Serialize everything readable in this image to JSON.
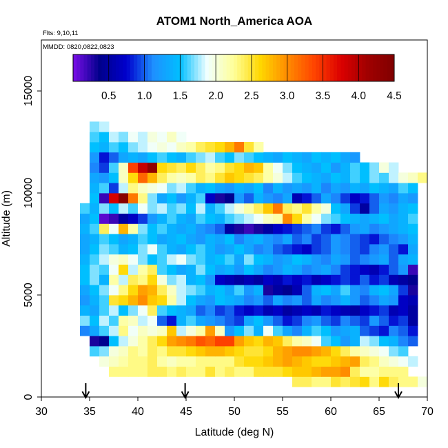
{
  "chart_data": {
    "type": "heatmap",
    "title": "ATOM1 North_America AOA",
    "annotations": [
      "Flts: 9,10,11",
      "MMDD: 0820,0822,0823"
    ],
    "xlabel": "Latitude (deg N)",
    "ylabel": "Altitude (m)",
    "xlim": [
      30,
      70
    ],
    "ylim": [
      0,
      17500
    ],
    "x_ticks": [
      "30",
      "35",
      "40",
      "45",
      "50",
      "55",
      "60",
      "65",
      "70"
    ],
    "y_ticks": [
      "0",
      "5000",
      "10000",
      "15000"
    ],
    "colorbar": {
      "range": [
        0,
        4.5
      ],
      "ticks": [
        "0.5",
        "1.0",
        "1.5",
        "2.0",
        "2.5",
        "3.0",
        "3.5",
        "4.0",
        "4.5"
      ],
      "colors": [
        "#7B0FE8",
        "#00008B",
        "#0000CD",
        "#1E90FF",
        "#00BFFF",
        "#F0FFFF",
        "#FFFF99",
        "#FFD700",
        "#FF8C00",
        "#FF4500",
        "#DC0000",
        "#A00000",
        "#800000"
      ]
    },
    "arrow_latitudes": [
      34.6,
      44.9,
      67.0
    ],
    "grid": false,
    "cell_size": {
      "dlat": 1.0,
      "dalt": 500
    },
    "rows": [
      {
        "alt": 500,
        "lat_start": 56,
        "values": [
          2.4,
          2.4,
          2.3,
          2.3,
          2.5,
          2.4,
          2.5,
          2.6,
          2.3,
          2.6,
          2.4,
          2.3,
          2.3,
          2.0
        ]
      },
      {
        "alt": 1000,
        "lat_start": 37,
        "values": [
          2.3,
          2.3,
          2.3,
          2.3,
          2.4,
          2.4,
          2.3,
          2.4,
          2.3,
          2.3,
          2.5,
          2.3,
          2.4,
          2.3,
          2.3,
          2.5,
          2.5,
          2.5,
          2.6,
          2.7,
          2.7,
          2.8,
          2.9,
          2.9,
          3.0,
          2.4,
          2.2,
          2.2,
          2.3,
          2.3,
          2.3
        ]
      },
      {
        "alt": 1500,
        "lat_start": 36,
        "values": [
          2.0,
          2.1,
          2.2,
          2.3,
          2.3,
          2.4,
          2.2,
          2.1,
          2.2,
          2.2,
          2.3,
          2.3,
          2.3,
          2.3,
          2.5,
          2.6,
          2.6,
          2.7,
          2.8,
          2.9,
          2.8,
          2.7,
          2.6,
          2.6,
          2.7,
          2.8,
          2.9,
          2.4,
          2.3,
          2.1,
          2.0,
          1.9,
          1.8
        ]
      },
      {
        "alt": 2000,
        "lat_start": 35,
        "values": [
          1.6,
          1.7,
          2.0,
          2.1,
          2.3,
          2.2,
          2.4,
          2.3,
          2.5,
          2.5,
          2.6,
          2.7,
          2.8,
          2.8,
          2.7,
          2.6,
          2.5,
          2.5,
          2.6,
          2.8,
          2.9,
          3.0,
          3.0,
          2.9,
          2.8,
          2.6,
          2.4,
          2.2,
          2.1,
          2.0,
          1.9,
          1.7,
          1.6
        ]
      },
      {
        "alt": 2500,
        "lat_start": 35,
        "values": [
          0.3,
          0.4,
          1.5,
          1.8,
          2.0,
          2.2,
          2.4,
          2.6,
          2.9,
          3.0,
          3.1,
          3.3,
          3.2,
          3.4,
          3.4,
          2.9,
          2.7,
          2.6,
          2.8,
          2.7,
          2.4,
          2.2,
          2.1,
          1.9,
          1.6,
          1.5,
          1.2,
          1.4,
          1.8,
          1.7,
          1.5,
          1.4,
          1.1,
          1.0
        ]
      },
      {
        "alt": 3000,
        "lat_start": 34,
        "values": [
          1.1,
          1.3,
          1.6,
          1.8,
          2.3,
          1.9,
          2.1,
          2.0,
          2.1,
          2.7,
          1.8,
          2.0,
          2.2,
          2.9,
          2.1,
          1.2,
          1.5,
          1.7,
          1.4,
          1.9,
          1.6,
          1.3,
          1.1,
          1.4,
          1.6,
          1.5,
          1.2,
          1.3,
          1.4,
          1.0,
          0.9,
          0.8,
          1.1,
          1.0,
          0.8
        ]
      },
      {
        "alt": 3500,
        "lat_start": 34,
        "values": [
          1.7,
          1.5,
          1.8,
          1.6,
          2.2,
          2.1,
          1.8,
          1.9,
          1.0,
          0.8,
          1.4,
          1.6,
          1.3,
          1.2,
          1.1,
          1.0,
          0.9,
          1.3,
          1.5,
          1.2,
          1.0,
          0.8,
          0.9,
          1.1,
          1.2,
          1.0,
          0.9,
          1.1,
          1.0,
          0.9,
          1.2,
          1.0,
          0.8,
          0.9,
          0.5
        ]
      },
      {
        "alt": 4000,
        "lat_start": 34,
        "values": [
          1.4,
          1.3,
          1.6,
          1.8,
          1.5,
          1.7,
          1.9,
          2.4,
          1.6,
          1.5,
          1.4,
          1.3,
          1.0,
          1.1,
          0.9,
          1.0,
          0.8,
          0.7,
          0.8,
          0.6,
          0.7,
          0.5,
          0.6,
          0.7,
          0.6,
          0.8,
          0.7,
          0.6,
          0.5,
          0.7,
          0.8,
          0.9,
          0.6,
          0.7,
          0.5
        ]
      },
      {
        "alt": 4500,
        "lat_start": 34,
        "values": [
          1.2,
          1.4,
          1.6,
          2.5,
          2.6,
          2.8,
          3.0,
          2.7,
          2.6,
          2.2,
          1.8,
          1.5,
          1.3,
          1.2,
          1.5,
          1.4,
          1.3,
          1.1,
          1.2,
          1.0,
          1.3,
          1.1,
          1.2,
          1.0,
          1.3,
          1.1,
          1.2,
          1.4,
          1.2,
          1.0,
          1.1,
          1.3,
          1.2,
          0.7,
          0.6
        ]
      },
      {
        "alt": 5000,
        "lat_start": 34,
        "values": [
          1.3,
          1.5,
          1.7,
          1.9,
          2.3,
          2.6,
          2.9,
          2.8,
          2.4,
          2.1,
          1.8,
          1.7,
          1.6,
          1.4,
          1.5,
          1.3,
          1.6,
          1.2,
          1.4,
          0.3,
          0.5,
          0.4,
          0.6,
          1.0,
          1.4,
          1.5,
          1.3,
          1.6,
          1.2,
          1.1,
          1.4,
          1.5,
          1.3,
          0.9,
          0.3
        ]
      },
      {
        "alt": 5500,
        "lat_start": 34,
        "values": [
          1.5,
          1.7,
          1.4,
          2.2,
          1.8,
          2.4,
          2.3,
          2.6,
          2.0,
          1.7,
          1.8,
          1.4,
          1.5,
          1.2,
          0.7,
          0.6,
          0.5,
          0.6,
          0.5,
          0.7,
          0.6,
          0.8,
          0.7,
          0.8,
          0.6,
          0.7,
          0.8,
          0.9,
          0.8,
          1.0,
          0.8,
          0.9,
          0.6,
          0.5,
          0.4
        ]
      },
      {
        "alt": 6000,
        "lat_start": 34,
        "values": [
          1.5,
          1.7,
          1.6,
          1.9,
          2.6,
          1.8,
          2.2,
          2.4,
          1.6,
          1.5,
          1.3,
          1.4,
          1.7,
          1.5,
          1.3,
          1.4,
          1.2,
          1.5,
          1.3,
          1.1,
          1.2,
          1.4,
          1.3,
          1.1,
          1.2,
          1.3,
          1.1,
          0.9,
          0.8,
          0.7,
          0.6,
          0.8,
          1.0,
          1.2,
          0.2
        ]
      },
      {
        "alt": 6500,
        "lat_start": 34,
        "values": [
          1.4,
          1.6,
          1.8,
          2.0,
          2.1,
          1.9,
          1.7,
          1.5,
          1.6,
          1.8,
          1.9,
          1.7,
          1.6,
          1.4,
          1.5,
          1.6,
          1.3,
          1.7,
          1.5,
          1.4,
          1.2,
          1.3,
          1.5,
          1.4,
          1.2,
          1.1,
          1.3,
          1.2,
          1.0,
          1.1,
          1.2,
          1.3,
          1.0,
          1.3,
          1.4
        ]
      },
      {
        "alt": 7000,
        "lat_start": 34,
        "values": [
          1.3,
          1.5,
          1.7,
          1.6,
          1.4,
          1.5,
          1.7,
          1.9,
          1.6,
          1.4,
          1.3,
          1.5,
          1.6,
          1.4,
          1.2,
          1.3,
          1.5,
          1.3,
          1.1,
          1.2,
          1.0,
          0.9,
          0.8,
          0.7,
          0.9,
          1.0,
          1.2,
          1.1,
          1.0,
          0.9,
          1.1,
          1.2,
          1.0,
          0.8,
          1.3
        ]
      },
      {
        "alt": 7500,
        "lat_start": 34,
        "values": [
          1.3,
          1.4,
          1.6,
          1.5,
          1.3,
          1.4,
          1.6,
          1.5,
          1.3,
          1.4,
          1.5,
          1.3,
          1.2,
          1.4,
          1.3,
          1.5,
          1.1,
          1.3,
          1.4,
          1.2,
          1.1,
          1.3,
          1.0,
          1.1,
          0.9,
          1.0,
          1.2,
          1.1,
          1.0,
          0.9,
          0.8,
          1.0,
          1.1,
          1.2,
          1.4
        ]
      },
      {
        "alt": 8000,
        "lat_start": 34,
        "values": [
          1.4,
          1.6,
          2.4,
          1.9,
          2.8,
          2.2,
          1.7,
          1.5,
          1.6,
          1.4,
          1.3,
          1.4,
          1.2,
          1.1,
          1.0,
          0.5,
          0.3,
          0.2,
          0.3,
          0.5,
          0.7,
          0.8,
          0.9,
          1.0,
          1.1,
          0.9,
          0.8,
          1.0,
          1.2,
          1.3,
          1.1,
          1.2,
          1.3,
          1.4,
          1.5
        ]
      },
      {
        "alt": 8500,
        "lat_start": 34,
        "values": [
          1.3,
          1.5,
          0.1,
          0.2,
          0.5,
          0.7,
          0.9,
          1.2,
          1.4,
          1.6,
          1.4,
          1.3,
          1.6,
          1.5,
          1.4,
          1.6,
          1.7,
          1.8,
          1.9,
          2.1,
          2.2,
          3.0,
          2.6,
          2.2,
          1.9,
          1.7,
          1.6,
          1.5,
          1.4,
          1.3,
          1.4,
          1.5,
          1.3,
          1.4,
          1.6
        ]
      },
      {
        "alt": 9000,
        "lat_start": 34,
        "values": [
          1.6,
          1.4,
          1.7,
          1.5,
          1.8,
          1.6,
          1.9,
          1.7,
          1.8,
          1.6,
          1.7,
          1.5,
          1.8,
          1.4,
          1.6,
          1.8,
          2.0,
          2.2,
          2.4,
          2.7,
          3.1,
          2.4,
          2.3,
          2.5,
          2.2,
          2.0,
          1.5,
          1.3,
          0.9,
          0.5,
          1.0,
          1.3,
          1.2,
          1.4,
          1.5
        ]
      },
      {
        "alt": 9500,
        "lat_start": 35,
        "values": [
          1.5,
          0.2,
          3.8,
          4.4,
          3.1,
          2.3,
          1.7,
          1.3,
          1.5,
          1.2,
          1.4,
          1.6,
          0.7,
          0.3,
          0.4,
          1.2,
          1.0,
          1.4,
          1.2,
          1.1,
          1.3,
          0.6,
          0.8,
          1.0,
          1.3,
          1.1,
          0.9,
          0.7,
          0.8,
          1.0,
          1.2,
          1.1,
          1.3,
          1.2
        ]
      },
      {
        "alt": 10000,
        "lat_start": 35,
        "values": [
          1.4,
          1.6,
          0.9,
          1.8,
          2.3,
          2.1,
          2.0,
          1.9,
          1.7,
          1.8,
          1.6,
          1.4,
          1.5,
          1.3,
          1.2,
          1.4,
          1.3,
          1.5,
          1.1,
          1.4,
          1.2,
          1.3,
          1.2,
          1.4,
          1.1,
          1.3,
          1.2,
          1.4,
          1.3,
          1.5,
          1.4,
          1.3,
          1.6,
          1.5
        ]
      },
      {
        "alt": 10500,
        "lat_start": 35,
        "values": [
          1.3,
          1.2,
          1.5,
          2.1,
          2.6,
          3.2,
          2.8,
          2.4,
          2.2,
          2.1,
          2.2,
          2.4,
          2.3,
          2.5,
          2.7,
          2.6,
          2.5,
          2.4,
          2.2,
          2.0,
          1.8,
          1.6,
          1.5,
          1.4,
          1.3,
          1.5,
          1.4,
          1.6,
          1.5,
          1.7,
          1.6,
          1.8,
          2.0,
          2.1,
          2.3
        ]
      },
      {
        "alt": 11000,
        "lat_start": 35,
        "values": [
          1.1,
          0.9,
          1.6,
          2.1,
          3.4,
          3.9,
          4.3,
          2.6,
          2.5,
          2.4,
          2.6,
          2.4,
          2.2,
          2.3,
          2.5,
          2.6,
          2.8,
          2.7,
          2.2,
          1.9,
          1.7,
          1.5,
          1.4,
          1.3,
          1.5,
          1.2,
          1.4,
          1.6,
          1.5,
          1.7,
          2.0,
          1.8
        ]
      },
      {
        "alt": 11500,
        "lat_start": 35,
        "values": [
          1.2,
          0.8,
          1.0,
          1.3,
          1.4,
          1.3,
          1.5,
          1.6,
          1.5,
          1.4,
          1.6,
          1.7,
          1.8,
          1.6,
          1.5,
          1.7,
          1.6,
          1.5,
          1.4,
          1.3,
          1.5,
          1.4,
          1.3,
          1.5,
          1.4,
          1.5,
          1.3,
          1.2
        ]
      },
      {
        "alt": 12000,
        "lat_start": 35,
        "values": [
          1.5,
          1.4,
          1.6,
          1.5,
          1.7,
          1.8,
          1.9,
          2.0,
          1.9,
          2.1,
          2.2,
          2.4,
          2.5,
          2.6,
          2.8,
          3.1,
          2.5,
          2.2
        ]
      },
      {
        "alt": 12500,
        "lat_start": 35,
        "values": [
          1.6,
          1.5,
          1.8,
          1.7,
          1.9,
          1.8,
          2.0,
          1.9,
          2.1,
          1.9
        ]
      },
      {
        "alt": 13000,
        "lat_start": 35,
        "values": [
          1.7,
          1.8
        ]
      }
    ]
  }
}
